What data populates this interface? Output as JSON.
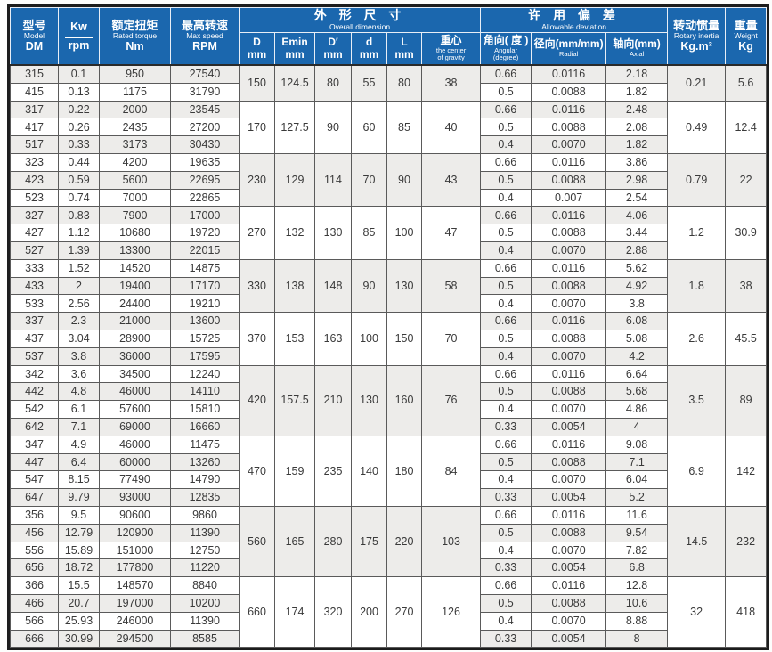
{
  "header": {
    "model": {
      "zh": "型号",
      "en": "Model",
      "code": "DM"
    },
    "kw": {
      "top": "Kw",
      "bottom": "rpm"
    },
    "torque": {
      "zh": "额定扭矩",
      "en": "Rated torque",
      "unit": "Nm"
    },
    "speed": {
      "zh": "最高转速",
      "en": "Max speed",
      "unit": "RPM"
    },
    "overall": {
      "zh": "外 形 尺 寸",
      "en": "Overall dimension"
    },
    "deviation": {
      "zh": "许 用 偏 差",
      "en": "Allowable deviation"
    },
    "dims": [
      {
        "top": "D",
        "unit": "mm"
      },
      {
        "top": "Emin",
        "unit": "mm"
      },
      {
        "top": "D′",
        "unit": "mm"
      },
      {
        "top": "d",
        "unit": "mm"
      },
      {
        "top": "L",
        "unit": "mm"
      }
    ],
    "cg": {
      "zh": "重心",
      "en1": "the center",
      "en2": "of gravity"
    },
    "dev": {
      "angular": {
        "zh": "角向( 度 )",
        "en1": "Angular",
        "en2": "(degree)"
      },
      "radial": {
        "zh": "径向(mm/mm)",
        "en": "Radial"
      },
      "axial": {
        "zh": "轴向(mm)",
        "en": "Axial"
      }
    },
    "inertia": {
      "zh": "转动惯量",
      "en": "Rotary inertia",
      "unit": "Kg.m²"
    },
    "weight": {
      "zh": "重量",
      "en": "Weight",
      "unit": "Kg"
    }
  },
  "groups": [
    {
      "dims": {
        "D": "150",
        "Emin": "124.5",
        "Dp": "80",
        "d": "55",
        "L": "80",
        "cg": "38"
      },
      "inertia": "0.21",
      "weight": "5.6",
      "rows": [
        {
          "model": "315",
          "kw": "0.1",
          "torque": "950",
          "speed": "27540",
          "angular": "0.66",
          "radial": "0.0116",
          "axial": "2.18"
        },
        {
          "model": "415",
          "kw": "0.13",
          "torque": "1175",
          "speed": "31790",
          "angular": "0.5",
          "radial": "0.0088",
          "axial": "1.82"
        }
      ]
    },
    {
      "dims": {
        "D": "170",
        "Emin": "127.5",
        "Dp": "90",
        "d": "60",
        "L": "85",
        "cg": "40"
      },
      "inertia": "0.49",
      "weight": "12.4",
      "rows": [
        {
          "model": "317",
          "kw": "0.22",
          "torque": "2000",
          "speed": "23545",
          "angular": "0.66",
          "radial": "0.0116",
          "axial": "2.48"
        },
        {
          "model": "417",
          "kw": "0.26",
          "torque": "2435",
          "speed": "27200",
          "angular": "0.5",
          "radial": "0.0088",
          "axial": "2.08"
        },
        {
          "model": "517",
          "kw": "0.33",
          "torque": "3173",
          "speed": "30430",
          "angular": "0.4",
          "radial": "0.0070",
          "axial": "1.82"
        }
      ]
    },
    {
      "dims": {
        "D": "230",
        "Emin": "129",
        "Dp": "114",
        "d": "70",
        "L": "90",
        "cg": "43"
      },
      "inertia": "0.79",
      "weight": "22",
      "rows": [
        {
          "model": "323",
          "kw": "0.44",
          "torque": "4200",
          "speed": "19635",
          "angular": "0.66",
          "radial": "0.0116",
          "axial": "3.86"
        },
        {
          "model": "423",
          "kw": "0.59",
          "torque": "5600",
          "speed": "22695",
          "angular": "0.5",
          "radial": "0.0088",
          "axial": "2.98"
        },
        {
          "model": "523",
          "kw": "0.74",
          "torque": "7000",
          "speed": "22865",
          "angular": "0.4",
          "radial": "0.007",
          "axial": "2.54"
        }
      ]
    },
    {
      "dims": {
        "D": "270",
        "Emin": "132",
        "Dp": "130",
        "d": "85",
        "L": "100",
        "cg": "47"
      },
      "inertia": "1.2",
      "weight": "30.9",
      "rows": [
        {
          "model": "327",
          "kw": "0.83",
          "torque": "7900",
          "speed": "17000",
          "angular": "0.66",
          "radial": "0.0116",
          "axial": "4.06"
        },
        {
          "model": "427",
          "kw": "1.12",
          "torque": "10680",
          "speed": "19720",
          "angular": "0.5",
          "radial": "0.0088",
          "axial": "3.44"
        },
        {
          "model": "527",
          "kw": "1.39",
          "torque": "13300",
          "speed": "22015",
          "angular": "0.4",
          "radial": "0.0070",
          "axial": "2.88"
        }
      ]
    },
    {
      "dims": {
        "D": "330",
        "Emin": "138",
        "Dp": "148",
        "d": "90",
        "L": "130",
        "cg": "58"
      },
      "inertia": "1.8",
      "weight": "38",
      "rows": [
        {
          "model": "333",
          "kw": "1.52",
          "torque": "14520",
          "speed": "14875",
          "angular": "0.66",
          "radial": "0.0116",
          "axial": "5.62"
        },
        {
          "model": "433",
          "kw": "2",
          "torque": "19400",
          "speed": "17170",
          "angular": "0.5",
          "radial": "0.0088",
          "axial": "4.92"
        },
        {
          "model": "533",
          "kw": "2.56",
          "torque": "24400",
          "speed": "19210",
          "angular": "0.4",
          "radial": "0.0070",
          "axial": "3.8"
        }
      ]
    },
    {
      "dims": {
        "D": "370",
        "Emin": "153",
        "Dp": "163",
        "d": "100",
        "L": "150",
        "cg": "70"
      },
      "inertia": "2.6",
      "weight": "45.5",
      "rows": [
        {
          "model": "337",
          "kw": "2.3",
          "torque": "21000",
          "speed": "13600",
          "angular": "0.66",
          "radial": "0.0116",
          "axial": "6.08"
        },
        {
          "model": "437",
          "kw": "3.04",
          "torque": "28900",
          "speed": "15725",
          "angular": "0.5",
          "radial": "0.0088",
          "axial": "5.08"
        },
        {
          "model": "537",
          "kw": "3.8",
          "torque": "36000",
          "speed": "17595",
          "angular": "0.4",
          "radial": "0.0070",
          "axial": "4.2"
        }
      ]
    },
    {
      "dims": {
        "D": "420",
        "Emin": "157.5",
        "Dp": "210",
        "d": "130",
        "L": "160",
        "cg": "76"
      },
      "inertia": "3.5",
      "weight": "89",
      "rows": [
        {
          "model": "342",
          "kw": "3.6",
          "torque": "34500",
          "speed": "12240",
          "angular": "0.66",
          "radial": "0.0116",
          "axial": "6.64"
        },
        {
          "model": "442",
          "kw": "4.8",
          "torque": "46000",
          "speed": "14110",
          "angular": "0.5",
          "radial": "0.0088",
          "axial": "5.68"
        },
        {
          "model": "542",
          "kw": "6.1",
          "torque": "57600",
          "speed": "15810",
          "angular": "0.4",
          "radial": "0.0070",
          "axial": "4.86"
        },
        {
          "model": "642",
          "kw": "7.1",
          "torque": "69000",
          "speed": "16660",
          "angular": "0.33",
          "radial": "0.0054",
          "axial": "4"
        }
      ]
    },
    {
      "dims": {
        "D": "470",
        "Emin": "159",
        "Dp": "235",
        "d": "140",
        "L": "180",
        "cg": "84"
      },
      "inertia": "6.9",
      "weight": "142",
      "rows": [
        {
          "model": "347",
          "kw": "4.9",
          "torque": "46000",
          "speed": "11475",
          "angular": "0.66",
          "radial": "0.0116",
          "axial": "9.08"
        },
        {
          "model": "447",
          "kw": "6.4",
          "torque": "60000",
          "speed": "13260",
          "angular": "0.5",
          "radial": "0.0088",
          "axial": "7.1"
        },
        {
          "model": "547",
          "kw": "8.15",
          "torque": "77490",
          "speed": "14790",
          "angular": "0.4",
          "radial": "0.0070",
          "axial": "6.04"
        },
        {
          "model": "647",
          "kw": "9.79",
          "torque": "93000",
          "speed": "12835",
          "angular": "0.33",
          "radial": "0.0054",
          "axial": "5.2"
        }
      ]
    },
    {
      "dims": {
        "D": "560",
        "Emin": "165",
        "Dp": "280",
        "d": "175",
        "L": "220",
        "cg": "103"
      },
      "inertia": "14.5",
      "weight": "232",
      "rows": [
        {
          "model": "356",
          "kw": "9.5",
          "torque": "90600",
          "speed": "9860",
          "angular": "0.66",
          "radial": "0.0116",
          "axial": "11.6"
        },
        {
          "model": "456",
          "kw": "12.79",
          "torque": "120900",
          "speed": "11390",
          "angular": "0.5",
          "radial": "0.0088",
          "axial": "9.54"
        },
        {
          "model": "556",
          "kw": "15.89",
          "torque": "151000",
          "speed": "12750",
          "angular": "0.4",
          "radial": "0.0070",
          "axial": "7.82"
        },
        {
          "model": "656",
          "kw": "18.72",
          "torque": "177800",
          "speed": "11220",
          "angular": "0.33",
          "radial": "0.0054",
          "axial": "6.8"
        }
      ]
    },
    {
      "dims": {
        "D": "660",
        "Emin": "174",
        "Dp": "320",
        "d": "200",
        "L": "270",
        "cg": "126"
      },
      "inertia": "32",
      "weight": "418",
      "rows": [
        {
          "model": "366",
          "kw": "15.5",
          "torque": "148570",
          "speed": "8840",
          "angular": "0.66",
          "radial": "0.0116",
          "axial": "12.8"
        },
        {
          "model": "466",
          "kw": "20.7",
          "torque": "197000",
          "speed": "10200",
          "angular": "0.5",
          "radial": "0.0088",
          "axial": "10.6"
        },
        {
          "model": "566",
          "kw": "25.93",
          "torque": "246000",
          "speed": "11390",
          "angular": "0.4",
          "radial": "0.0070",
          "axial": "8.88"
        },
        {
          "model": "666",
          "kw": "30.99",
          "torque": "294500",
          "speed": "8585",
          "angular": "0.33",
          "radial": "0.0054",
          "axial": "8"
        }
      ]
    }
  ],
  "colors": {
    "header_blue": "#1b67ae",
    "header_text": "#ffffff",
    "row_shade": "#edecea",
    "grid_line": "#5a5a5a",
    "frame": "#1c1c1c"
  }
}
